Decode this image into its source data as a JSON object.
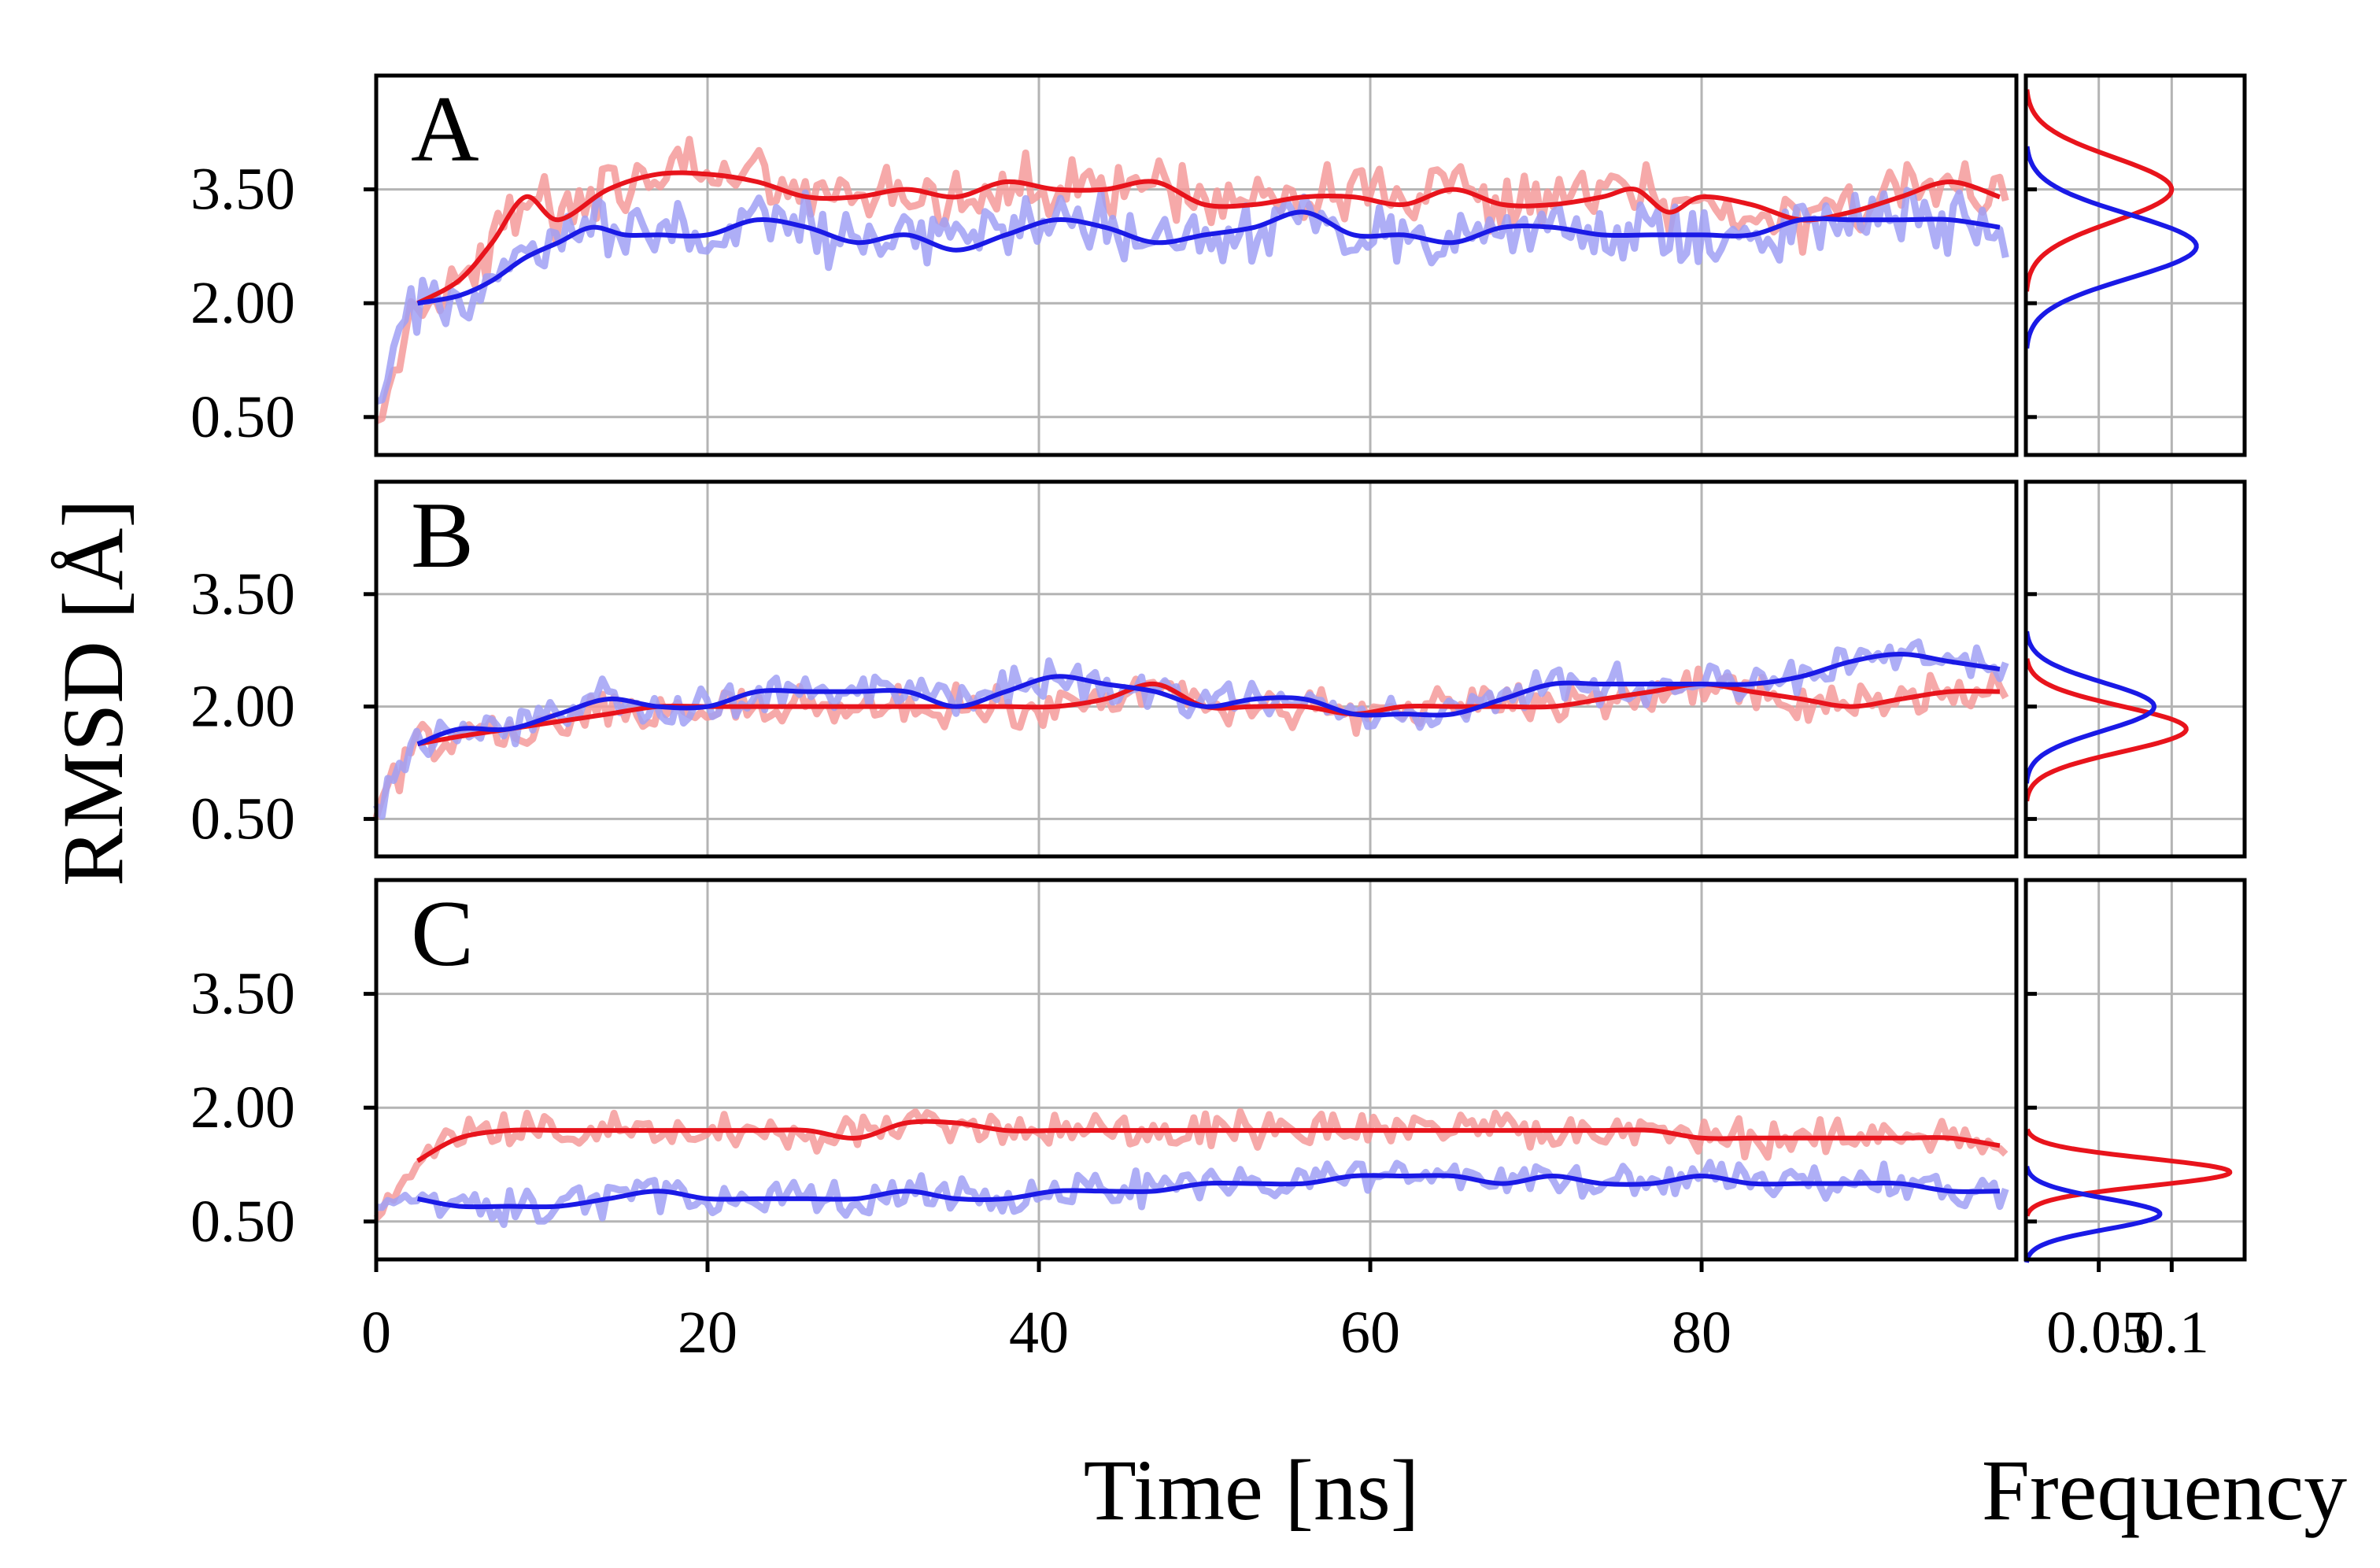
{
  "chart_data": {
    "type": "line",
    "xlabel": "Time [ns]",
    "ylabel": "RMSD [Å]",
    "hist_xlabel": "Frequency",
    "xlim": [
      0,
      99
    ],
    "ylim": [
      0,
      5.0
    ],
    "x_ticks": [
      "0",
      "20",
      "40",
      "60",
      "80"
    ],
    "x_tick_values": [
      0,
      20,
      40,
      60,
      80
    ],
    "y_ticks": [
      "0.50",
      "2.00",
      "3.50"
    ],
    "y_tick_values": [
      0.5,
      2.0,
      3.5
    ],
    "hist_xlim": [
      0,
      0.15
    ],
    "hist_ticks": [
      "0.05",
      "0.1"
    ],
    "hist_tick_values": [
      0.05,
      0.1
    ],
    "colors": {
      "red": "#e8141c",
      "blue": "#1a1ae6",
      "red_light": "#f59a9a",
      "blue_light": "#a0a0f5",
      "grid": "#b4b4b4"
    },
    "panels": [
      {
        "label": "A",
        "series": [
          {
            "name": "red",
            "color": "#e8141c",
            "x": [
              2.5,
              5,
              7,
              9,
              11,
              14,
              17,
              20,
              23,
              26,
              29,
              32,
              35,
              38,
              41,
              44,
              47,
              50,
              53,
              56,
              59,
              62,
              65,
              68,
              71,
              74,
              76,
              78,
              80,
              83,
              86,
              89,
              92,
              95,
              98
            ],
            "y": [
              2.0,
              2.3,
              2.8,
              3.4,
              3.1,
              3.5,
              3.7,
              3.7,
              3.6,
              3.4,
              3.4,
              3.5,
              3.4,
              3.6,
              3.5,
              3.5,
              3.6,
              3.3,
              3.3,
              3.4,
              3.4,
              3.3,
              3.5,
              3.3,
              3.3,
              3.4,
              3.5,
              3.2,
              3.4,
              3.3,
              3.1,
              3.2,
              3.4,
              3.6,
              3.4
            ],
            "hist_mean": 3.5,
            "hist_sd": 0.42,
            "hist_peak": 0.1
          },
          {
            "name": "blue",
            "color": "#1a1ae6",
            "x": [
              2.5,
              5,
              7,
              9,
              11,
              13,
              15,
              17,
              20,
              23,
              26,
              29,
              32,
              35,
              38,
              41,
              44,
              47,
              50,
              53,
              56,
              59,
              62,
              65,
              68,
              71,
              74,
              77,
              80,
              83,
              86,
              89,
              92,
              95,
              98
            ],
            "y": [
              2.0,
              2.1,
              2.3,
              2.6,
              2.8,
              3.0,
              2.9,
              2.9,
              2.9,
              3.1,
              3.0,
              2.8,
              2.9,
              2.7,
              2.9,
              3.1,
              3.0,
              2.8,
              2.9,
              3.0,
              3.2,
              2.9,
              2.9,
              2.8,
              3.0,
              3.0,
              2.9,
              2.9,
              2.9,
              2.9,
              3.1,
              3.1,
              3.1,
              3.1,
              3.0
            ],
            "hist_mean": 2.75,
            "hist_sd": 0.42,
            "hist_peak": 0.117
          }
        ]
      },
      {
        "label": "B",
        "series": [
          {
            "name": "red",
            "color": "#e8141c",
            "x": [
              2.5,
              5,
              8,
              11,
              14,
              17,
              20,
              23,
              26,
              29,
              32,
              35,
              38,
              41,
              44,
              47,
              50,
              53,
              56,
              59,
              62,
              65,
              68,
              71,
              74,
              77,
              80,
              83,
              86,
              89,
              92,
              95,
              98
            ],
            "y": [
              1.5,
              1.6,
              1.7,
              1.8,
              1.9,
              2.0,
              2.0,
              2.0,
              2.0,
              2.0,
              2.0,
              2.0,
              2.0,
              2.0,
              2.1,
              2.3,
              2.0,
              2.0,
              2.0,
              1.9,
              2.0,
              2.0,
              2.0,
              2.0,
              2.1,
              2.2,
              2.3,
              2.2,
              2.1,
              2.0,
              2.1,
              2.2,
              2.2
            ],
            "hist_mean": 1.7,
            "hist_sd": 0.3,
            "hist_peak": 0.11
          },
          {
            "name": "blue",
            "color": "#1a1ae6",
            "x": [
              2.5,
              5,
              8,
              11,
              14,
              17,
              20,
              23,
              26,
              29,
              32,
              35,
              38,
              41,
              44,
              47,
              50,
              53,
              56,
              59,
              62,
              65,
              68,
              71,
              74,
              77,
              80,
              83,
              86,
              89,
              92,
              95,
              98
            ],
            "y": [
              1.5,
              1.7,
              1.7,
              1.9,
              2.1,
              2.0,
              2.0,
              2.2,
              2.2,
              2.2,
              2.2,
              2.0,
              2.2,
              2.4,
              2.3,
              2.2,
              2.0,
              2.1,
              2.1,
              1.9,
              1.9,
              1.9,
              2.1,
              2.3,
              2.3,
              2.3,
              2.3,
              2.3,
              2.4,
              2.6,
              2.7,
              2.6,
              2.5
            ],
            "hist_mean": 2.0,
            "hist_sd": 0.32,
            "hist_peak": 0.088
          }
        ]
      },
      {
        "label": "C",
        "series": [
          {
            "name": "red",
            "color": "#e8141c",
            "x": [
              2.5,
              5,
              8,
              11,
              14,
              17,
              20,
              23,
              26,
              29,
              32,
              35,
              38,
              41,
              44,
              47,
              50,
              53,
              56,
              59,
              62,
              65,
              68,
              71,
              74,
              77,
              80,
              83,
              86,
              89,
              92,
              95,
              98
            ],
            "y": [
              1.3,
              1.6,
              1.7,
              1.7,
              1.7,
              1.7,
              1.7,
              1.7,
              1.7,
              1.6,
              1.8,
              1.8,
              1.7,
              1.7,
              1.7,
              1.7,
              1.7,
              1.7,
              1.7,
              1.7,
              1.7,
              1.7,
              1.7,
              1.7,
              1.7,
              1.7,
              1.6,
              1.6,
              1.6,
              1.6,
              1.6,
              1.6,
              1.5
            ],
            "hist_mean": 1.15,
            "hist_sd": 0.18,
            "hist_peak": 0.14
          },
          {
            "name": "blue",
            "color": "#1a1ae6",
            "x": [
              2.5,
              5,
              8,
              11,
              14,
              17,
              20,
              23,
              26,
              29,
              32,
              35,
              38,
              41,
              44,
              47,
              50,
              53,
              56,
              59,
              62,
              65,
              68,
              71,
              74,
              77,
              80,
              83,
              86,
              89,
              92,
              95,
              98
            ],
            "y": [
              0.8,
              0.7,
              0.7,
              0.7,
              0.8,
              0.9,
              0.8,
              0.8,
              0.8,
              0.8,
              0.9,
              0.8,
              0.8,
              0.9,
              0.9,
              0.9,
              1.0,
              1.0,
              1.0,
              1.1,
              1.1,
              1.1,
              1.0,
              1.1,
              1.0,
              1.0,
              1.1,
              1.0,
              1.0,
              1.0,
              1.0,
              0.9,
              0.9
            ],
            "hist_mean": 0.6,
            "hist_sd": 0.2,
            "hist_peak": 0.092
          }
        ]
      }
    ]
  }
}
